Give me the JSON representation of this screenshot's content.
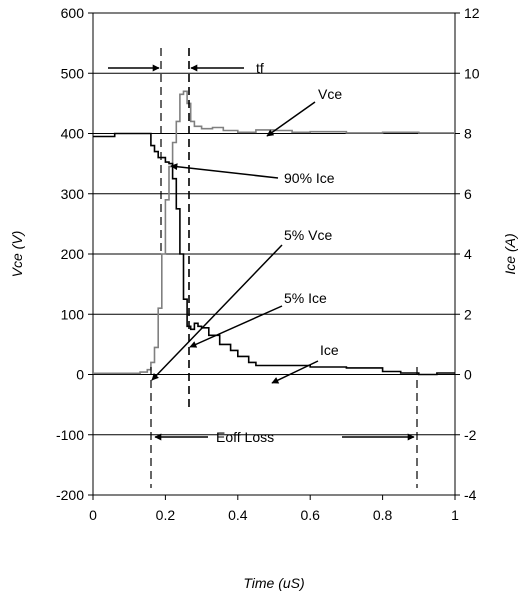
{
  "chart_data": {
    "type": "line",
    "xlabel": "Time (uS)",
    "ylabel_left": "Vce (V)",
    "ylabel_right": "Ice (A)",
    "xlim": [
      0,
      1
    ],
    "ylim_left": [
      -200,
      600
    ],
    "ylim_right": [
      -4,
      12
    ],
    "x_ticks": [
      "0",
      "0.2",
      "0.4",
      "0.6",
      "0.8",
      "1"
    ],
    "y_ticks_left": [
      "-200",
      "-100",
      "0",
      "100",
      "200",
      "300",
      "400",
      "500",
      "600"
    ],
    "y_ticks_right": [
      "-4",
      "-2",
      "0",
      "2",
      "4",
      "6",
      "8",
      "10",
      "12"
    ],
    "grid": "horizontal",
    "series": [
      {
        "name": "Vce",
        "axis": "left",
        "color": "#808080",
        "points": [
          [
            0.0,
            2
          ],
          [
            0.1,
            2
          ],
          [
            0.13,
            4
          ],
          [
            0.15,
            8
          ],
          [
            0.16,
            20
          ],
          [
            0.17,
            45
          ],
          [
            0.18,
            110
          ],
          [
            0.19,
            200
          ],
          [
            0.2,
            290
          ],
          [
            0.21,
            345
          ],
          [
            0.22,
            385
          ],
          [
            0.23,
            420
          ],
          [
            0.24,
            465
          ],
          [
            0.25,
            470
          ],
          [
            0.26,
            450
          ],
          [
            0.27,
            420
          ],
          [
            0.28,
            412
          ],
          [
            0.3,
            408
          ],
          [
            0.33,
            410
          ],
          [
            0.36,
            405
          ],
          [
            0.4,
            402
          ],
          [
            0.45,
            406
          ],
          [
            0.5,
            405
          ],
          [
            0.55,
            402
          ],
          [
            0.6,
            403
          ],
          [
            0.7,
            401
          ],
          [
            0.8,
            402
          ],
          [
            0.9,
            401
          ],
          [
            1.0,
            401
          ]
        ]
      },
      {
        "name": "Ice",
        "axis": "right",
        "color": "#000000",
        "points": [
          [
            0.0,
            7.9
          ],
          [
            0.05,
            7.9
          ],
          [
            0.06,
            8.0
          ],
          [
            0.15,
            8.0
          ],
          [
            0.16,
            7.6
          ],
          [
            0.17,
            7.4
          ],
          [
            0.18,
            7.2
          ],
          [
            0.2,
            7.05
          ],
          [
            0.21,
            7.0
          ],
          [
            0.22,
            6.5
          ],
          [
            0.23,
            5.5
          ],
          [
            0.24,
            4.0
          ],
          [
            0.25,
            2.5
          ],
          [
            0.26,
            1.6
          ],
          [
            0.27,
            1.5
          ],
          [
            0.28,
            1.7
          ],
          [
            0.29,
            1.6
          ],
          [
            0.3,
            1.55
          ],
          [
            0.32,
            1.3
          ],
          [
            0.35,
            1.0
          ],
          [
            0.38,
            0.8
          ],
          [
            0.4,
            0.6
          ],
          [
            0.43,
            0.4
          ],
          [
            0.45,
            0.3
          ],
          [
            0.5,
            0.3
          ],
          [
            0.6,
            0.25
          ],
          [
            0.7,
            0.22
          ],
          [
            0.8,
            0.1
          ],
          [
            0.85,
            0.05
          ],
          [
            0.9,
            0.0
          ],
          [
            0.95,
            0.05
          ],
          [
            1.0,
            0.05
          ]
        ]
      }
    ],
    "annotations": {
      "tf": "tf",
      "vce": "Vce",
      "ice90": "90% Ice",
      "vce5": "5% Vce",
      "ice5": "5% Ice",
      "ice": "Ice",
      "eoff": "Eoff Loss"
    }
  }
}
